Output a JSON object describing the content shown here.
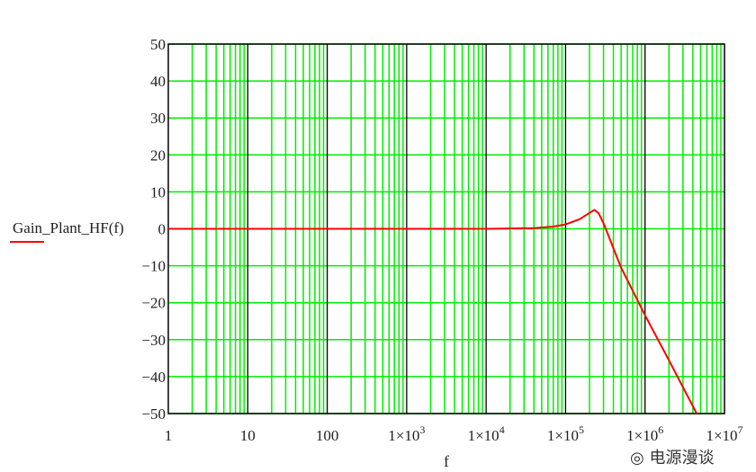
{
  "chart_data": {
    "type": "line",
    "xscale": "log",
    "xlim": [
      1,
      10000000
    ],
    "ylim": [
      -50,
      50
    ],
    "grid": true,
    "xlabel": "f",
    "ylabel": "",
    "legend_position": "left",
    "yticks": [
      "50",
      "40",
      "30",
      "20",
      "10",
      "0",
      "−10",
      "−20",
      "−30",
      "−40",
      "−50"
    ],
    "xticks": [
      {
        "base": "1",
        "exp": ""
      },
      {
        "base": "10",
        "exp": ""
      },
      {
        "base": "100",
        "exp": ""
      },
      {
        "base": "1×10",
        "exp": "3"
      },
      {
        "base": "1×10",
        "exp": "4"
      },
      {
        "base": "1×10",
        "exp": "5"
      },
      {
        "base": "1×10",
        "exp": "6"
      },
      {
        "base": "1×10",
        "exp": "7"
      }
    ],
    "series": [
      {
        "name": "Gain_Plant_HF(f)",
        "color": "#ff0000",
        "x": [
          1,
          10,
          100,
          1000,
          10000,
          40000,
          70000,
          100000,
          150000,
          200000,
          230000,
          260000,
          300000,
          500000,
          1000000,
          2000000,
          4470000
        ],
        "y": [
          0,
          0,
          0,
          0,
          0,
          0.2,
          0.6,
          1.2,
          2.6,
          4.3,
          5.1,
          4.2,
          1.5,
          -10.5,
          -23.4,
          -35.6,
          -50
        ]
      }
    ],
    "colors": {
      "grid": "#00ee00",
      "major_grid": "#000000",
      "curve": "#ff0000"
    }
  },
  "watermark": "电源漫谈"
}
